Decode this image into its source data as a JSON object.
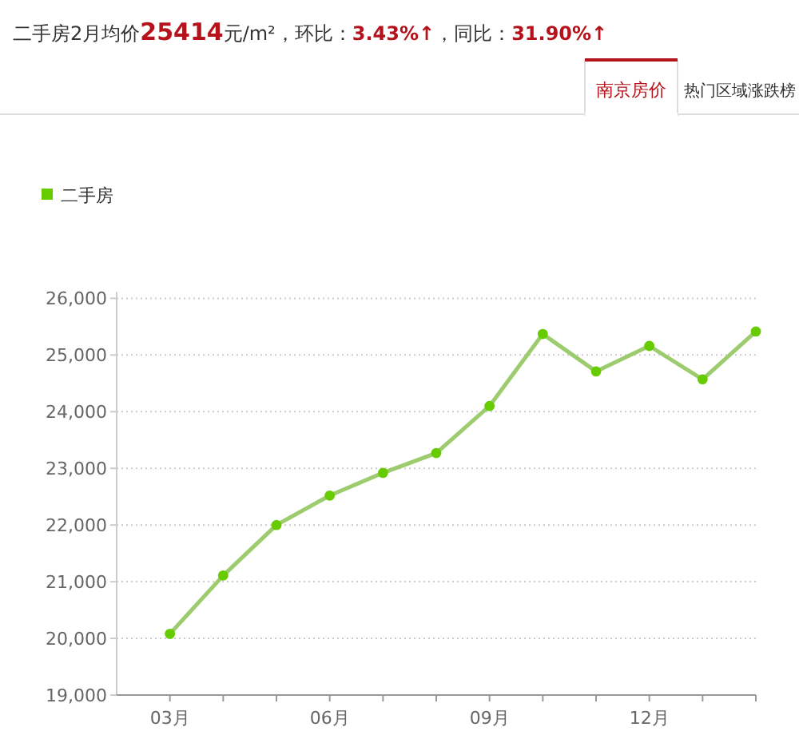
{
  "chart_data": {
    "type": "line",
    "title": "二手房2月均价**25414**元/m²，环比：**3.43%↑**，同比：**31.90%↑**",
    "annotations": [
      "南京房价",
      "热门区域涨跌榜"
    ],
    "categories": [
      "03月",
      null,
      null,
      "06月",
      null,
      null,
      "09月",
      null,
      null,
      "12月",
      null,
      null
    ],
    "series": [
      {
        "name": "二手房",
        "color": "#66cc00",
        "values": [
          20080,
          21110,
          22000,
          22520,
          22920,
          23270,
          24100,
          25370,
          24710,
          25160,
          24570,
          25414
        ]
      }
    ],
    "ylim": [
      19000,
      26000
    ],
    "yticks": [
      {
        "value": 19000,
        "label": "19,000"
      },
      {
        "value": 20000,
        "label": "20,000"
      },
      {
        "value": 21000,
        "label": "21,000"
      },
      {
        "value": 22000,
        "label": "22,000"
      },
      {
        "value": 23000,
        "label": "23,000"
      },
      {
        "value": 24000,
        "label": "24,000"
      },
      {
        "value": 25000,
        "label": "25,000"
      },
      {
        "value": 26000,
        "label": "26,000"
      }
    ],
    "grid": "y",
    "legend": "top left",
    "marker": "circle"
  }
}
